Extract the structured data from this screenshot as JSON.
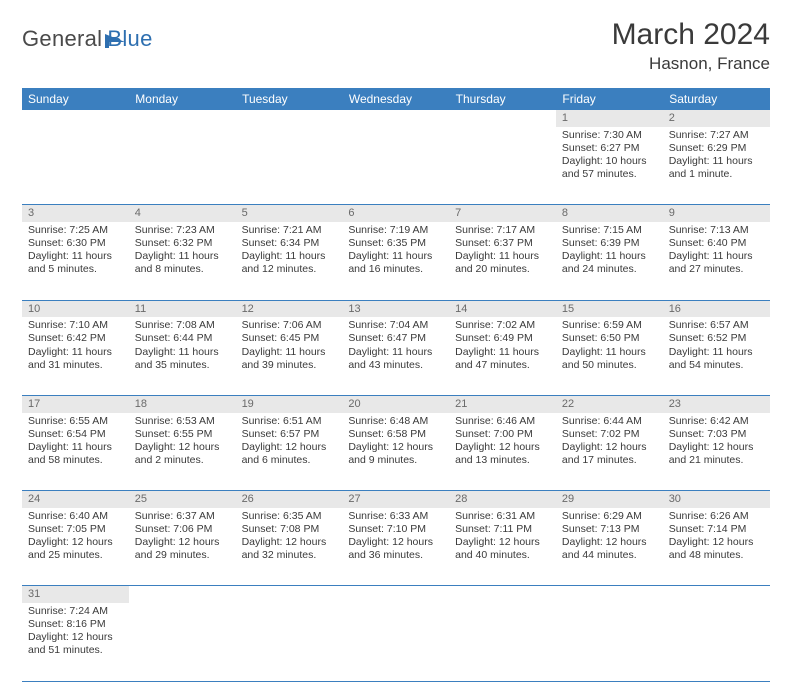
{
  "theme": {
    "header_bg": "#3b7fbf",
    "header_text": "#ffffff",
    "daynum_bg": "#e8e8e8",
    "daynum_color": "#6a6a6a",
    "cell_border": "#3b7fbf",
    "body_text": "#3a3a3a",
    "logo_gray": "#4a4a4a",
    "logo_blue": "#2e6fb0"
  },
  "logo": {
    "part1": "General",
    "part2": "Blue"
  },
  "title": "March 2024",
  "location": "Hasnon, France",
  "weekdays": [
    "Sunday",
    "Monday",
    "Tuesday",
    "Wednesday",
    "Thursday",
    "Friday",
    "Saturday"
  ],
  "weeks": [
    [
      null,
      null,
      null,
      null,
      null,
      {
        "n": "1",
        "sr": "Sunrise: 7:30 AM",
        "ss": "Sunset: 6:27 PM",
        "dl": "Daylight: 10 hours and 57 minutes."
      },
      {
        "n": "2",
        "sr": "Sunrise: 7:27 AM",
        "ss": "Sunset: 6:29 PM",
        "dl": "Daylight: 11 hours and 1 minute."
      }
    ],
    [
      {
        "n": "3",
        "sr": "Sunrise: 7:25 AM",
        "ss": "Sunset: 6:30 PM",
        "dl": "Daylight: 11 hours and 5 minutes."
      },
      {
        "n": "4",
        "sr": "Sunrise: 7:23 AM",
        "ss": "Sunset: 6:32 PM",
        "dl": "Daylight: 11 hours and 8 minutes."
      },
      {
        "n": "5",
        "sr": "Sunrise: 7:21 AM",
        "ss": "Sunset: 6:34 PM",
        "dl": "Daylight: 11 hours and 12 minutes."
      },
      {
        "n": "6",
        "sr": "Sunrise: 7:19 AM",
        "ss": "Sunset: 6:35 PM",
        "dl": "Daylight: 11 hours and 16 minutes."
      },
      {
        "n": "7",
        "sr": "Sunrise: 7:17 AM",
        "ss": "Sunset: 6:37 PM",
        "dl": "Daylight: 11 hours and 20 minutes."
      },
      {
        "n": "8",
        "sr": "Sunrise: 7:15 AM",
        "ss": "Sunset: 6:39 PM",
        "dl": "Daylight: 11 hours and 24 minutes."
      },
      {
        "n": "9",
        "sr": "Sunrise: 7:13 AM",
        "ss": "Sunset: 6:40 PM",
        "dl": "Daylight: 11 hours and 27 minutes."
      }
    ],
    [
      {
        "n": "10",
        "sr": "Sunrise: 7:10 AM",
        "ss": "Sunset: 6:42 PM",
        "dl": "Daylight: 11 hours and 31 minutes."
      },
      {
        "n": "11",
        "sr": "Sunrise: 7:08 AM",
        "ss": "Sunset: 6:44 PM",
        "dl": "Daylight: 11 hours and 35 minutes."
      },
      {
        "n": "12",
        "sr": "Sunrise: 7:06 AM",
        "ss": "Sunset: 6:45 PM",
        "dl": "Daylight: 11 hours and 39 minutes."
      },
      {
        "n": "13",
        "sr": "Sunrise: 7:04 AM",
        "ss": "Sunset: 6:47 PM",
        "dl": "Daylight: 11 hours and 43 minutes."
      },
      {
        "n": "14",
        "sr": "Sunrise: 7:02 AM",
        "ss": "Sunset: 6:49 PM",
        "dl": "Daylight: 11 hours and 47 minutes."
      },
      {
        "n": "15",
        "sr": "Sunrise: 6:59 AM",
        "ss": "Sunset: 6:50 PM",
        "dl": "Daylight: 11 hours and 50 minutes."
      },
      {
        "n": "16",
        "sr": "Sunrise: 6:57 AM",
        "ss": "Sunset: 6:52 PM",
        "dl": "Daylight: 11 hours and 54 minutes."
      }
    ],
    [
      {
        "n": "17",
        "sr": "Sunrise: 6:55 AM",
        "ss": "Sunset: 6:54 PM",
        "dl": "Daylight: 11 hours and 58 minutes."
      },
      {
        "n": "18",
        "sr": "Sunrise: 6:53 AM",
        "ss": "Sunset: 6:55 PM",
        "dl": "Daylight: 12 hours and 2 minutes."
      },
      {
        "n": "19",
        "sr": "Sunrise: 6:51 AM",
        "ss": "Sunset: 6:57 PM",
        "dl": "Daylight: 12 hours and 6 minutes."
      },
      {
        "n": "20",
        "sr": "Sunrise: 6:48 AM",
        "ss": "Sunset: 6:58 PM",
        "dl": "Daylight: 12 hours and 9 minutes."
      },
      {
        "n": "21",
        "sr": "Sunrise: 6:46 AM",
        "ss": "Sunset: 7:00 PM",
        "dl": "Daylight: 12 hours and 13 minutes."
      },
      {
        "n": "22",
        "sr": "Sunrise: 6:44 AM",
        "ss": "Sunset: 7:02 PM",
        "dl": "Daylight: 12 hours and 17 minutes."
      },
      {
        "n": "23",
        "sr": "Sunrise: 6:42 AM",
        "ss": "Sunset: 7:03 PM",
        "dl": "Daylight: 12 hours and 21 minutes."
      }
    ],
    [
      {
        "n": "24",
        "sr": "Sunrise: 6:40 AM",
        "ss": "Sunset: 7:05 PM",
        "dl": "Daylight: 12 hours and 25 minutes."
      },
      {
        "n": "25",
        "sr": "Sunrise: 6:37 AM",
        "ss": "Sunset: 7:06 PM",
        "dl": "Daylight: 12 hours and 29 minutes."
      },
      {
        "n": "26",
        "sr": "Sunrise: 6:35 AM",
        "ss": "Sunset: 7:08 PM",
        "dl": "Daylight: 12 hours and 32 minutes."
      },
      {
        "n": "27",
        "sr": "Sunrise: 6:33 AM",
        "ss": "Sunset: 7:10 PM",
        "dl": "Daylight: 12 hours and 36 minutes."
      },
      {
        "n": "28",
        "sr": "Sunrise: 6:31 AM",
        "ss": "Sunset: 7:11 PM",
        "dl": "Daylight: 12 hours and 40 minutes."
      },
      {
        "n": "29",
        "sr": "Sunrise: 6:29 AM",
        "ss": "Sunset: 7:13 PM",
        "dl": "Daylight: 12 hours and 44 minutes."
      },
      {
        "n": "30",
        "sr": "Sunrise: 6:26 AM",
        "ss": "Sunset: 7:14 PM",
        "dl": "Daylight: 12 hours and 48 minutes."
      }
    ],
    [
      {
        "n": "31",
        "sr": "Sunrise: 7:24 AM",
        "ss": "Sunset: 8:16 PM",
        "dl": "Daylight: 12 hours and 51 minutes."
      },
      null,
      null,
      null,
      null,
      null,
      null
    ]
  ]
}
